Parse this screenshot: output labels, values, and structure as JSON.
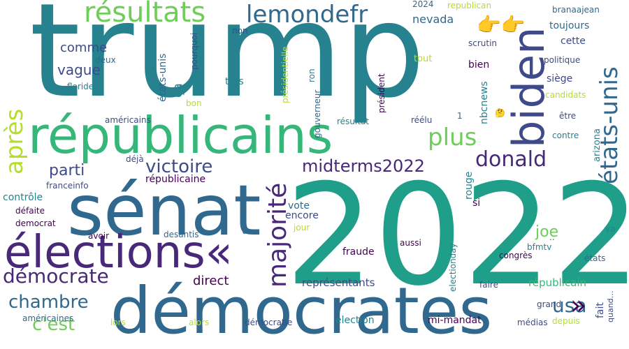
{
  "colors": {
    "background": "#ffffff",
    "palette": [
      "#440154",
      "#482878",
      "#3e4a89",
      "#31688e",
      "#26828e",
      "#1f9e89",
      "#35b779",
      "#6ece58",
      "#b5de2b",
      "#fde725"
    ]
  },
  "words": [
    {
      "text": "trump",
      "color": "#26828e",
      "size": 186,
      "vertical": false
    },
    {
      "text": "2022",
      "color": "#1f9e89",
      "size": 200,
      "vertical": false
    },
    {
      "text": "sénat",
      "color": "#31688e",
      "size": 100,
      "vertical": false
    },
    {
      "text": "démocrates",
      "color": "#31688e",
      "size": 92,
      "vertical": false
    },
    {
      "text": "républicains",
      "color": "#35b779",
      "size": 72,
      "vertical": false
    },
    {
      "text": "élections«",
      "color": "#482878",
      "size": 64,
      "vertical": false
    },
    {
      "text": "biden",
      "color": "#3e4a89",
      "size": 62,
      "vertical": true
    },
    {
      "text": "états-unis",
      "color": "#31688e",
      "size": 34,
      "vertical": true
    },
    {
      "text": "majorité",
      "color": "#482878",
      "size": 36,
      "vertical": true
    },
    {
      "text": "résultats",
      "color": "#6ece58",
      "size": 40,
      "vertical": false
    },
    {
      "text": "lemondefr",
      "color": "#31688e",
      "size": 34,
      "vertical": false
    },
    {
      "text": "donald",
      "color": "#482878",
      "size": 30,
      "vertical": false
    },
    {
      "text": "midterms2022",
      "color": "#482878",
      "size": 24,
      "vertical": false
    },
    {
      "text": "victoire",
      "color": "#3e4a89",
      "size": 26,
      "vertical": false
    },
    {
      "text": "plus",
      "color": "#6ece58",
      "size": 34,
      "vertical": false
    },
    {
      "text": "après",
      "color": "#b5de2b",
      "size": 34,
      "vertical": true
    },
    {
      "text": "parti",
      "color": "#3e4a89",
      "size": 22,
      "vertical": false
    },
    {
      "text": "démocrate",
      "color": "#482878",
      "size": 28,
      "vertical": false
    },
    {
      "text": "chambre",
      "color": "#31688e",
      "size": 26,
      "vertical": false
    },
    {
      "text": "c'est",
      "color": "#6ece58",
      "size": 26,
      "vertical": false
    },
    {
      "text": "usa",
      "color": "#31688e",
      "size": 28,
      "vertical": false
    },
    {
      "text": "»",
      "color": "#440154",
      "size": 38,
      "vertical": false
    },
    {
      "text": "joe",
      "color": "#6ece58",
      "size": 22,
      "vertical": false
    },
    {
      "text": "comme",
      "color": "#3e4a89",
      "size": 18,
      "vertical": false
    },
    {
      "text": "vague",
      "color": "#3e4a89",
      "size": 20,
      "vertical": false
    },
    {
      "text": "direct",
      "color": "#440154",
      "size": 18,
      "vertical": false
    },
    {
      "text": "représentants",
      "color": "#3e4a89",
      "size": 15,
      "vertical": false
    },
    {
      "text": "républicain",
      "color": "#35b779",
      "size": 15,
      "vertical": false
    },
    {
      "text": "républicaine",
      "color": "#440154",
      "size": 14,
      "vertical": false
    },
    {
      "text": "👉👉",
      "color": "#b5de2b",
      "size": 28,
      "vertical": false
    },
    {
      "text": "nevada",
      "color": "#31688e",
      "size": 16,
      "vertical": false
    },
    {
      "text": "toujours",
      "color": "#31688e",
      "size": 14,
      "vertical": false
    },
    {
      "text": "cette",
      "color": "#3e4a89",
      "size": 14,
      "vertical": false
    },
    {
      "text": "bien",
      "color": "#440154",
      "size": 14,
      "vertical": false
    },
    {
      "text": "siège",
      "color": "#3e4a89",
      "size": 14,
      "vertical": false
    },
    {
      "text": "encore",
      "color": "#3e4a89",
      "size": 14,
      "vertical": false
    },
    {
      "text": "vote",
      "color": "#31688e",
      "size": 14,
      "vertical": false
    },
    {
      "text": "si",
      "color": "#440154",
      "size": 14,
      "vertical": false
    },
    {
      "text": "fraude",
      "color": "#440154",
      "size": 14,
      "vertical": false
    },
    {
      "text": "ça",
      "color": "#26828e",
      "size": 18,
      "vertical": true
    },
    {
      "text": "très",
      "color": "#26828e",
      "size": 14,
      "vertical": false
    },
    {
      "text": "contrôle",
      "color": "#26828e",
      "size": 14,
      "vertical": false
    },
    {
      "text": "2024",
      "color": "#31688e",
      "size": 12,
      "vertical": false
    },
    {
      "text": "republican",
      "color": "#b5de2b",
      "size": 12,
      "vertical": false
    },
    {
      "text": "branaajean",
      "color": "#31688e",
      "size": 12,
      "vertical": false
    },
    {
      "text": "non",
      "color": "#3e4a89",
      "size": 12,
      "vertical": false
    },
    {
      "text": "tout",
      "color": "#b5de2b",
      "size": 13,
      "vertical": false
    },
    {
      "text": "scrutin",
      "color": "#3e4a89",
      "size": 12,
      "vertical": false
    },
    {
      "text": "politique",
      "color": "#3e4a89",
      "size": 12,
      "vertical": false
    },
    {
      "text": "deux",
      "color": "#31688e",
      "size": 12,
      "vertical": false
    },
    {
      "text": "floride",
      "color": "#26828e",
      "size": 12,
      "vertical": false
    },
    {
      "text": "américains",
      "color": "#3e4a89",
      "size": 12,
      "vertical": false
    },
    {
      "text": "bon",
      "color": "#b5de2b",
      "size": 12,
      "vertical": false
    },
    {
      "text": "candidats",
      "color": "#b5de2b",
      "size": 12,
      "vertical": false
    },
    {
      "text": "être",
      "color": "#3e4a89",
      "size": 12,
      "vertical": false
    },
    {
      "text": "contre",
      "color": "#26828e",
      "size": 12,
      "vertical": false
    },
    {
      "text": "résultat",
      "color": "#26828e",
      "size": 12,
      "vertical": false
    },
    {
      "text": "réélu",
      "color": "#3e4a89",
      "size": 12,
      "vertical": false
    },
    {
      "text": "1",
      "color": "#31688e",
      "size": 12,
      "vertical": false
    },
    {
      "text": "🤔",
      "color": "#3e4a89",
      "size": 12,
      "vertical": false
    },
    {
      "text": "déjà",
      "color": "#3e4a89",
      "size": 12,
      "vertical": false
    },
    {
      "text": "franceinfo",
      "color": "#3e4a89",
      "size": 12,
      "vertical": false
    },
    {
      "text": "défaite",
      "color": "#440154",
      "size": 12,
      "vertical": false
    },
    {
      "text": "democrat",
      "color": "#440154",
      "size": 12,
      "vertical": false
    },
    {
      "text": "avoir",
      "color": "#440154",
      "size": 12,
      "vertical": false
    },
    {
      "text": "desantis",
      "color": "#31688e",
      "size": 12,
      "vertical": false
    },
    {
      "text": "u",
      "color": "#31688e",
      "size": 14,
      "vertical": false
    },
    {
      "text": "jour",
      "color": "#b5de2b",
      "size": 12,
      "vertical": false
    },
    {
      "text": "aussi",
      "color": "#440154",
      "size": 12,
      "vertical": false
    },
    {
      "text": "congrès",
      "color": "#440154",
      "size": 12,
      "vertical": false
    },
    {
      "text": "états",
      "color": "#31688e",
      "size": 12,
      "vertical": false
    },
    {
      "text": "bfmtv",
      "color": "#26828e",
      "size": 12,
      "vertical": false
    },
    {
      "text": "va",
      "color": "#26828e",
      "size": 12,
      "vertical": false
    },
    {
      "text": "faire",
      "color": "#3e4a89",
      "size": 12,
      "vertical": false
    },
    {
      "text": "grand",
      "color": "#3e4a89",
      "size": 12,
      "vertical": false
    },
    {
      "text": "américaines",
      "color": "#31688e",
      "size": 12,
      "vertical": false
    },
    {
      "text": "lors",
      "color": "#b5de2b",
      "size": 12,
      "vertical": false
    },
    {
      "text": "alors",
      "color": "#b5de2b",
      "size": 12,
      "vertical": false
    },
    {
      "text": "démocratie",
      "color": "#3e4a89",
      "size": 12,
      "vertical": false
    },
    {
      "text": "election",
      "color": "#26828e",
      "size": 14,
      "vertical": false
    },
    {
      "text": "mi-mandat",
      "color": "#440154",
      "size": 14,
      "vertical": false
    },
    {
      "text": "médias",
      "color": "#3e4a89",
      "size": 12,
      "vertical": false
    },
    {
      "text": "depuis",
      "color": "#b5de2b",
      "size": 12,
      "vertical": false
    },
    {
      "text": "pourquoi",
      "color": "#3e4a89",
      "size": 12,
      "vertical": true
    },
    {
      "text": "états-unis",
      "color": "#31688e",
      "size": 14,
      "vertical": true
    },
    {
      "text": "présidentielle",
      "color": "#b5de2b",
      "size": 12,
      "vertical": true
    },
    {
      "text": "gouverneur",
      "color": "#31688e",
      "size": 12,
      "vertical": true
    },
    {
      "text": "ron",
      "color": "#26828e",
      "size": 12,
      "vertical": true
    },
    {
      "text": "président",
      "color": "#440154",
      "size": 12,
      "vertical": true
    },
    {
      "text": "nbcnews",
      "color": "#26828e",
      "size": 14,
      "vertical": true
    },
    {
      "text": "arizona",
      "color": "#26828e",
      "size": 13,
      "vertical": true
    },
    {
      "text": "rouge",
      "color": "#26828e",
      "size": 14,
      "vertical": true
    },
    {
      "text": "electionday",
      "color": "#26828e",
      "size": 12,
      "vertical": true
    },
    {
      "text": "fait",
      "color": "#3e4a89",
      "size": 14,
      "vertical": true
    },
    {
      "text": "quand…",
      "color": "#3e4a89",
      "size": 11,
      "vertical": true
    },
    {
      "text": "..",
      "color": "#31688e",
      "size": 12,
      "vertical": false
    }
  ]
}
